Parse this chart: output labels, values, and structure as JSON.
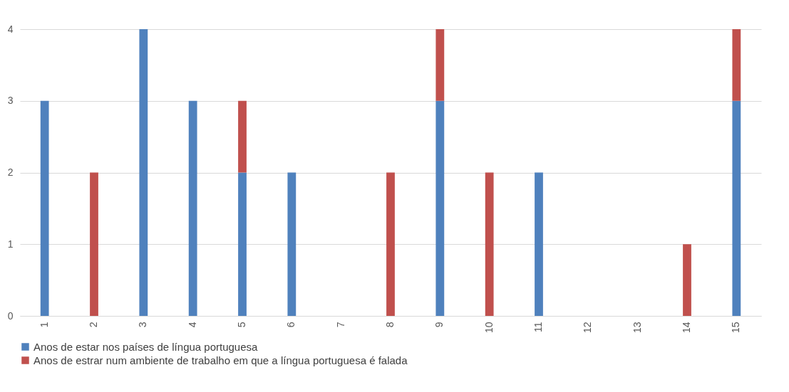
{
  "chart_data": {
    "type": "bar",
    "stacked": true,
    "categories": [
      "1",
      "2",
      "3",
      "4",
      "5",
      "6",
      "7",
      "8",
      "9",
      "10",
      "11",
      "12",
      "13",
      "14",
      "15"
    ],
    "series": [
      {
        "name": "Anos de estar nos países de língua portuguesa",
        "color": "#4f81bd",
        "values": [
          3,
          0,
          4,
          3,
          2,
          2,
          0,
          0,
          3,
          0,
          2,
          0,
          0,
          0,
          3
        ]
      },
      {
        "name": "Anos de estrar num ambiente de trabalho em que a língua portuguesa é falada",
        "color": "#c0504d",
        "values": [
          0,
          2,
          0,
          0,
          1,
          0,
          0,
          2,
          1,
          2,
          0,
          0,
          0,
          1,
          1
        ]
      }
    ],
    "ylim": [
      0,
      4
    ],
    "yticks": [
      0,
      1,
      2,
      3,
      4
    ],
    "grid": "y",
    "legend": "bottom"
  }
}
